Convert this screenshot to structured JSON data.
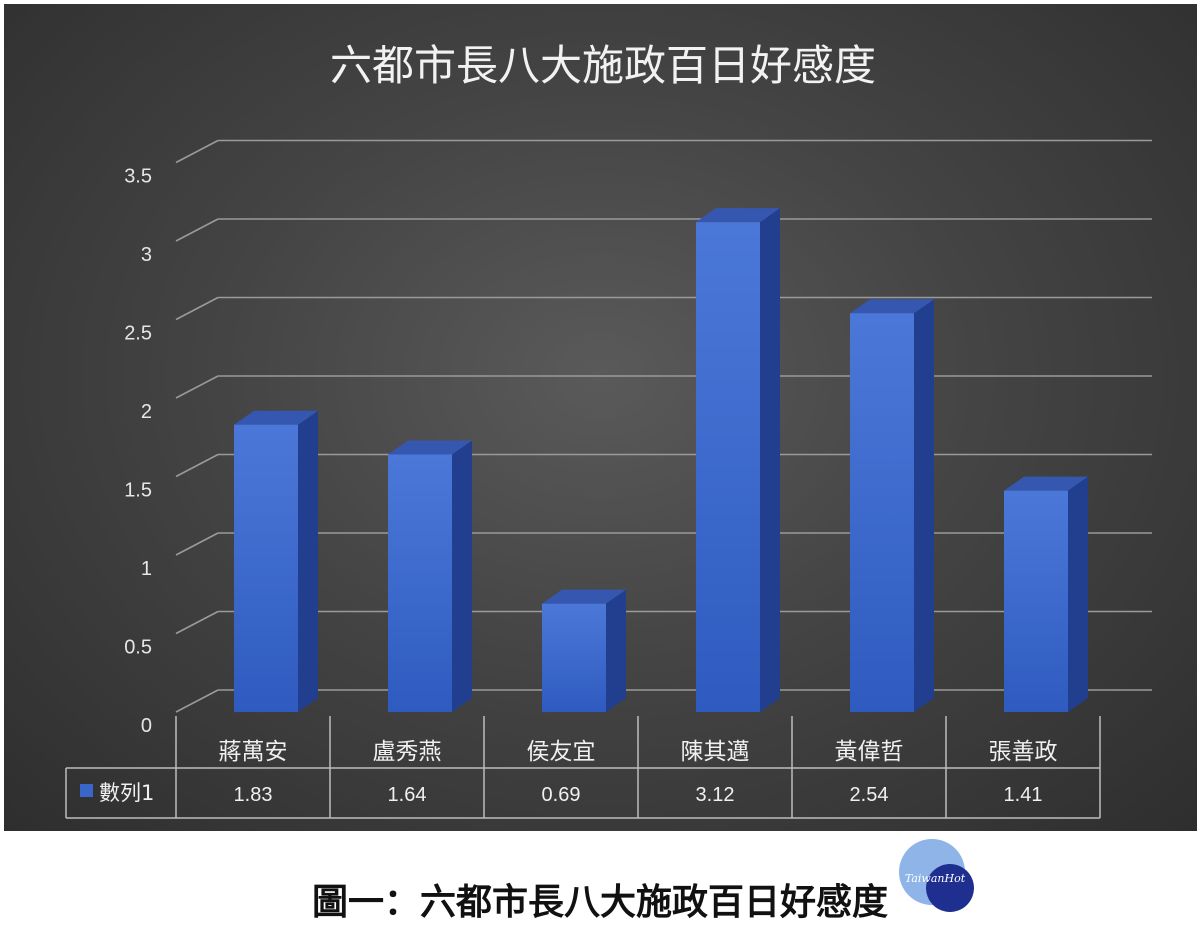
{
  "chart_data": {
    "type": "bar",
    "title": "六都市長八大施政百日好感度",
    "categories": [
      "蔣萬安",
      "盧秀燕",
      "侯友宜",
      "陳其邁",
      "黃偉哲",
      "張善政"
    ],
    "series": [
      {
        "name": "數列1",
        "values": [
          1.83,
          1.64,
          0.69,
          3.12,
          2.54,
          1.41
        ],
        "color": "#3a66c9"
      }
    ],
    "value_labels": [
      "1.83",
      "1.64",
      "0.69",
      "3.12",
      "2.54",
      "1.41"
    ],
    "yticks": [
      "0",
      "0.5",
      "1",
      "1.5",
      "2",
      "2.5",
      "3",
      "3.5"
    ],
    "ylim": [
      0,
      3.5
    ],
    "grid": true,
    "style": "3d-column",
    "legend": "data-table"
  },
  "caption": "圖一：六都市長八大施政百日好感度",
  "watermark_text": "TaiwanHot",
  "colors": {
    "background": "#444444",
    "bar": "#3a66c9",
    "text": "#f0f0f0"
  }
}
